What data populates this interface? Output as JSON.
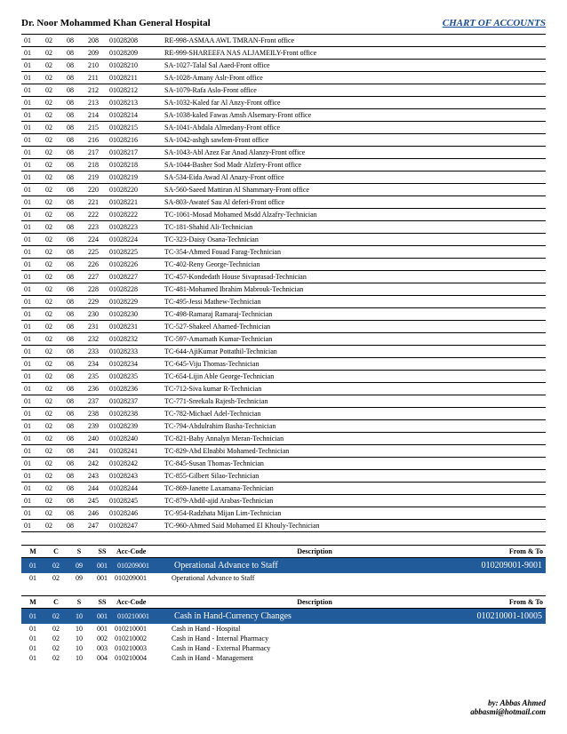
{
  "header": {
    "hospital": "Dr. Noor Mohammed Khan General Hospital",
    "title": "CHART OF ACCOUNTS"
  },
  "rows1": [
    {
      "m": "01",
      "c": "02",
      "s": "08",
      "ss": "208",
      "code": "01028208",
      "desc": "RE-998-ASMAA AWL TMRAN-Front office"
    },
    {
      "m": "01",
      "c": "02",
      "s": "08",
      "ss": "209",
      "code": "01028209",
      "desc": "RE-999-SHAREEFA  NAS  ALJAMEILY-Front office"
    },
    {
      "m": "01",
      "c": "02",
      "s": "08",
      "ss": "210",
      "code": "01028210",
      "desc": "SA-1027-Talal Sal Aaed-Front office"
    },
    {
      "m": "01",
      "c": "02",
      "s": "08",
      "ss": "211",
      "code": "01028211",
      "desc": "SA-1028-Amany   Aslr-Front office"
    },
    {
      "m": "01",
      "c": "02",
      "s": "08",
      "ss": "212",
      "code": "01028212",
      "desc": "SA-1079-Rafa   Aslo-Front office"
    },
    {
      "m": "01",
      "c": "02",
      "s": "08",
      "ss": "213",
      "code": "01028213",
      "desc": "SA-1032-Kaled far Al Anzy-Front office"
    },
    {
      "m": "01",
      "c": "02",
      "s": "08",
      "ss": "214",
      "code": "01028214",
      "desc": "SA-1038-kaled   Fawas Amsh Alsemary-Front office"
    },
    {
      "m": "01",
      "c": "02",
      "s": "08",
      "ss": "215",
      "code": "01028215",
      "desc": "SA-1041-Abdala   Almedany-Front office"
    },
    {
      "m": "01",
      "c": "02",
      "s": "08",
      "ss": "216",
      "code": "01028216",
      "desc": "SA-1042-ashgh   sawlem-Front office"
    },
    {
      "m": "01",
      "c": "02",
      "s": "08",
      "ss": "217",
      "code": "01028217",
      "desc": "SA-1043-Abl Azez Far Anad Alanzy-Front office"
    },
    {
      "m": "01",
      "c": "02",
      "s": "08",
      "ss": "218",
      "code": "01028218",
      "desc": "SA-1044-Basher Sod Madr Alzfery-Front office"
    },
    {
      "m": "01",
      "c": "02",
      "s": "08",
      "ss": "219",
      "code": "01028219",
      "desc": "SA-534-Eida   Awad Al Anazy-Front office"
    },
    {
      "m": "01",
      "c": "02",
      "s": "08",
      "ss": "220",
      "code": "01028220",
      "desc": "SA-560-Saeed   Mattiran Al Shammary-Front office"
    },
    {
      "m": "01",
      "c": "02",
      "s": "08",
      "ss": "221",
      "code": "01028221",
      "desc": "SA-803-Awatef   Sau Al deferi-Front office"
    },
    {
      "m": "01",
      "c": "02",
      "s": "08",
      "ss": "222",
      "code": "01028222",
      "desc": "TC-1061-Mosad   Mohamed Msdd Alzafry-Technician"
    },
    {
      "m": "01",
      "c": "02",
      "s": "08",
      "ss": "223",
      "code": "01028223",
      "desc": "TC-181-Shahid   Ali-Technician"
    },
    {
      "m": "01",
      "c": "02",
      "s": "08",
      "ss": "224",
      "code": "01028224",
      "desc": "TC-323-Daisy   Osana-Technician"
    },
    {
      "m": "01",
      "c": "02",
      "s": "08",
      "ss": "225",
      "code": "01028225",
      "desc": "TC-354-Ahmed   Fouad Farag-Technician"
    },
    {
      "m": "01",
      "c": "02",
      "s": "08",
      "ss": "226",
      "code": "01028226",
      "desc": "TC-402-Reny   George-Technician"
    },
    {
      "m": "01",
      "c": "02",
      "s": "08",
      "ss": "227",
      "code": "01028227",
      "desc": "TC-457-Kondedath   House Sivaprasad-Technician"
    },
    {
      "m": "01",
      "c": "02",
      "s": "08",
      "ss": "228",
      "code": "01028228",
      "desc": "TC-481-Mohamed   Ibrahim Mabrouk-Technician"
    },
    {
      "m": "01",
      "c": "02",
      "s": "08",
      "ss": "229",
      "code": "01028229",
      "desc": "TC-495-Jessi   Mathew-Technician"
    },
    {
      "m": "01",
      "c": "02",
      "s": "08",
      "ss": "230",
      "code": "01028230",
      "desc": "TC-498-Ramaraj   Ramaraj-Technician"
    },
    {
      "m": "01",
      "c": "02",
      "s": "08",
      "ss": "231",
      "code": "01028231",
      "desc": "TC-527-Shakeel   Ahamed-Technician"
    },
    {
      "m": "01",
      "c": "02",
      "s": "08",
      "ss": "232",
      "code": "01028232",
      "desc": "TC-597-Amarnath   Kumar-Technician"
    },
    {
      "m": "01",
      "c": "02",
      "s": "08",
      "ss": "233",
      "code": "01028233",
      "desc": "TC-644-AjiKumar   Pottathil-Technician"
    },
    {
      "m": "01",
      "c": "02",
      "s": "08",
      "ss": "234",
      "code": "01028234",
      "desc": "TC-645-Viju   Thomas-Technician"
    },
    {
      "m": "01",
      "c": "02",
      "s": "08",
      "ss": "235",
      "code": "01028235",
      "desc": "TC-654-Lijin Able   George-Technician"
    },
    {
      "m": "01",
      "c": "02",
      "s": "08",
      "ss": "236",
      "code": "01028236",
      "desc": "TC-712-Siva kumar   R-Technician"
    },
    {
      "m": "01",
      "c": "02",
      "s": "08",
      "ss": "237",
      "code": "01028237",
      "desc": "TC-771-Sreekala   Rajesh-Technician"
    },
    {
      "m": "01",
      "c": "02",
      "s": "08",
      "ss": "238",
      "code": "01028238",
      "desc": "TC-782-Michael   Adel-Technician"
    },
    {
      "m": "01",
      "c": "02",
      "s": "08",
      "ss": "239",
      "code": "01028239",
      "desc": "TC-794-Abdulrahim   Basha-Technician"
    },
    {
      "m": "01",
      "c": "02",
      "s": "08",
      "ss": "240",
      "code": "01028240",
      "desc": "TC-821-Baby Annalyn   Meran-Technician"
    },
    {
      "m": "01",
      "c": "02",
      "s": "08",
      "ss": "241",
      "code": "01028241",
      "desc": "TC-829-Abd Elnabbi   Mohamed-Technician"
    },
    {
      "m": "01",
      "c": "02",
      "s": "08",
      "ss": "242",
      "code": "01028242",
      "desc": "TC-845-Susan   Thomas-Technician"
    },
    {
      "m": "01",
      "c": "02",
      "s": "08",
      "ss": "243",
      "code": "01028243",
      "desc": "TC-855-Gilbert   Silao-Technician"
    },
    {
      "m": "01",
      "c": "02",
      "s": "08",
      "ss": "244",
      "code": "01028244",
      "desc": "TC-869-Janette   Laxamana-Technician"
    },
    {
      "m": "01",
      "c": "02",
      "s": "08",
      "ss": "245",
      "code": "01028245",
      "desc": "TC-879-Abdil-ajid   Arabas-Technician"
    },
    {
      "m": "01",
      "c": "02",
      "s": "08",
      "ss": "246",
      "code": "01028246",
      "desc": "TC-954-Radzhata   Mijan Lim-Technician"
    },
    {
      "m": "01",
      "c": "02",
      "s": "08",
      "ss": "247",
      "code": "01028247",
      "desc": "TC-960-Ahmed Said   Mohamed El Khouly-Technician"
    }
  ],
  "section2": {
    "cols": {
      "m": "M",
      "c": "C",
      "s": "S",
      "ss": "SS",
      "code": "Acc-Code",
      "desc": "Description",
      "ft": "From & To"
    },
    "band": {
      "m": "01",
      "c": "02",
      "s": "09",
      "ss": "001",
      "code": "010209001",
      "desc": "Operational Advance to Staff",
      "ft": "010209001-9001"
    },
    "rows": [
      {
        "m": "01",
        "c": "02",
        "s": "09",
        "ss": "001",
        "code": "010209001",
        "desc": "Operational Advance to Staff"
      }
    ]
  },
  "section3": {
    "cols": {
      "m": "M",
      "c": "C",
      "s": "S",
      "ss": "SS",
      "code": "Acc-Code",
      "desc": "Description",
      "ft": "From & To"
    },
    "band": {
      "m": "01",
      "c": "02",
      "s": "10",
      "ss": "001",
      "code": "010210001",
      "desc": "Cash in Hand-Currency Changes",
      "ft": "010210001-10005"
    },
    "rows": [
      {
        "m": "01",
        "c": "02",
        "s": "10",
        "ss": "001",
        "code": "010210001",
        "desc": "Cash in Hand - Hospital"
      },
      {
        "m": "01",
        "c": "02",
        "s": "10",
        "ss": "002",
        "code": "010210002",
        "desc": "Cash in Hand - Internal Pharmacy"
      },
      {
        "m": "01",
        "c": "02",
        "s": "10",
        "ss": "003",
        "code": "010210003",
        "desc": "Cash in Hand - External Pharmacy"
      },
      {
        "m": "01",
        "c": "02",
        "s": "10",
        "ss": "004",
        "code": "010210004",
        "desc": "Cash in Hand - Management"
      }
    ]
  },
  "footer": {
    "by": "by: Abbas Ahmed",
    "email": "abbasmi@hotmail.com"
  }
}
